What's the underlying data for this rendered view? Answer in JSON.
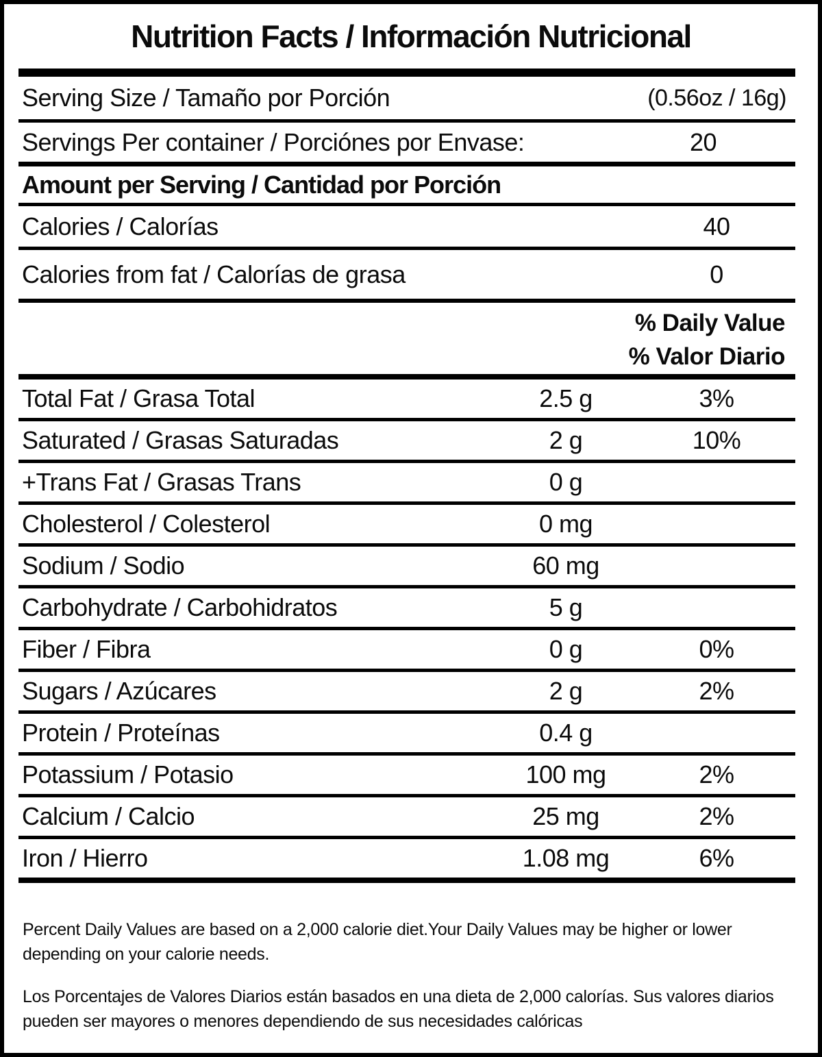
{
  "title": "Nutrition Facts / Información Nutricional",
  "serving": {
    "size_label": "Serving Size / Tamaño por Porción",
    "size_value": "(0.56oz / 16g)",
    "per_container_label": "Servings Per container / Porciónes por Envase:",
    "per_container_value": "20"
  },
  "amount_heading": "Amount per Serving / Cantidad por Porción",
  "calories": {
    "label": "Calories / Calorías",
    "value": "40",
    "from_fat_label": "Calories from fat / Calorías de grasa",
    "from_fat_value": "0"
  },
  "daily_value_header": {
    "line_en": "% Daily Value",
    "line_es": "% Valor Diario"
  },
  "nutrients": [
    {
      "label": "Total Fat / Grasa Total",
      "amount": "2.5 g",
      "dv": "3%"
    },
    {
      "label": "Saturated / Grasas Saturadas",
      "amount": "2 g",
      "dv": "10%"
    },
    {
      "label": "+Trans Fat / Grasas Trans",
      "amount": "0 g",
      "dv": ""
    },
    {
      "label": "Cholesterol / Colesterol",
      "amount": "0 mg",
      "dv": ""
    },
    {
      "label": "Sodium / Sodio",
      "amount": "60 mg",
      "dv": ""
    },
    {
      "label": "Carbohydrate / Carbohidratos",
      "amount": "5 g",
      "dv": ""
    },
    {
      "label": "Fiber / Fibra",
      "amount": "0 g",
      "dv": "0%"
    },
    {
      "label": "Sugars / Azúcares",
      "amount": "2 g",
      "dv": "2%"
    },
    {
      "label": "Protein / Proteínas",
      "amount": "0.4 g",
      "dv": ""
    },
    {
      "label": "Potassium / Potasio",
      "amount": "100 mg",
      "dv": "2%"
    },
    {
      "label": "Calcium / Calcio",
      "amount": "25 mg",
      "dv": "2%"
    },
    {
      "label": "Iron / Hierro",
      "amount": "1.08 mg",
      "dv": "6%"
    }
  ],
  "footnotes": {
    "english": "Percent Daily Values are based on a 2,000 calorie diet.Your Daily Values may be higher or lower depending on your calorie needs.",
    "spanish": "Los Porcentajes de Valores Diarios están basados en una dieta de 2,000 calorías. Sus valores diarios pueden ser mayores o menores dependiendo de sus necesidades calóricas"
  },
  "colors": {
    "text": "#0b0b0b",
    "border": "#000000",
    "background": "#ffffff"
  }
}
